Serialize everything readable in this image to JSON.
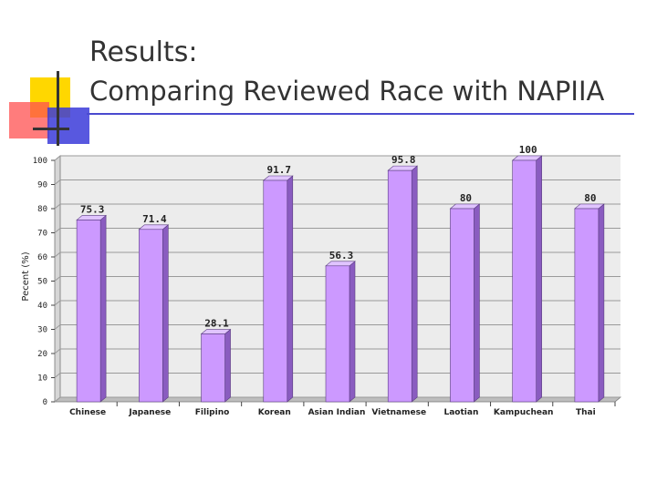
{
  "slide": {
    "title_line1": "Results:",
    "title_line2": "Comparing Reviewed Race with NAPIIA"
  },
  "colors": {
    "bar_front": "#cc99ff",
    "bar_side": "#8a5cc0",
    "bar_top": "#e0c4ff",
    "wall": "#ececec",
    "grid": "#9a9a9a",
    "title_rule": "#4a4acf"
  },
  "chart_data": {
    "type": "bar",
    "title": "",
    "xlabel": "",
    "ylabel": "Pecent (%)",
    "ylim": [
      0,
      100
    ],
    "yticks": [
      0,
      10,
      20,
      30,
      40,
      50,
      60,
      70,
      80,
      90,
      100
    ],
    "grid": true,
    "categories": [
      "Chinese",
      "Japanese",
      "Filipino",
      "Korean",
      "Asian Indian",
      "Vietnamese",
      "Laotian",
      "Kampuchean",
      "Thai"
    ],
    "values": [
      75.3,
      71.4,
      28.1,
      91.7,
      56.3,
      95.8,
      80,
      100,
      80
    ],
    "data_labels": [
      "75.3",
      "71.4",
      "28.1",
      "91.7",
      "56.3",
      "95.8",
      "80",
      "100",
      "80"
    ]
  }
}
